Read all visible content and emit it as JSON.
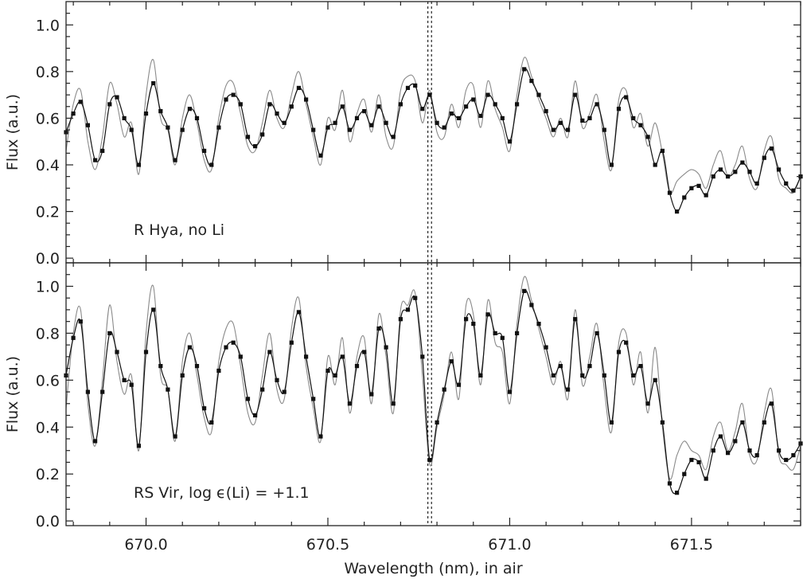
{
  "chart_data": {
    "type": "line",
    "x_axis": {
      "label": "Wavelength (nm), in air",
      "range": [
        669.78,
        671.8
      ],
      "ticks": [
        670.0,
        670.5,
        671.0,
        671.5
      ],
      "tick_labels": [
        "670.0",
        "670.5",
        "671.0",
        "671.5"
      ]
    },
    "marker_lines": [
      670.775,
      670.785
    ],
    "colors": {
      "observed": "#111111",
      "model": "#8a8a8a"
    },
    "panels": [
      {
        "annotation": "R Hya, no Li",
        "ylabel": "Flux (a.u.)",
        "ylim": [
          -0.02,
          1.1
        ],
        "yticks": [
          "0.0",
          "0.2",
          "0.4",
          "0.6",
          "0.8",
          "1.0"
        ],
        "series": [
          {
            "role": "observed",
            "x": [
              669.78,
              669.8,
              669.82,
              669.84,
              669.86,
              669.88,
              669.9,
              669.92,
              669.94,
              669.96,
              669.98,
              670.0,
              670.02,
              670.04,
              670.06,
              670.08,
              670.1,
              670.12,
              670.14,
              670.16,
              670.18,
              670.2,
              670.22,
              670.24,
              670.26,
              670.28,
              670.3,
              670.32,
              670.34,
              670.36,
              670.38,
              670.4,
              670.42,
              670.44,
              670.46,
              670.48,
              670.5,
              670.52,
              670.54,
              670.56,
              670.58,
              670.6,
              670.62,
              670.64,
              670.66,
              670.68,
              670.7,
              670.72,
              670.74,
              670.76,
              670.78,
              670.8,
              670.82,
              670.84,
              670.86,
              670.88,
              670.9,
              670.92,
              670.94,
              670.96,
              670.98,
              671.0,
              671.02,
              671.04,
              671.06,
              671.08,
              671.1,
              671.12,
              671.14,
              671.16,
              671.18,
              671.2,
              671.22,
              671.24,
              671.26,
              671.28,
              671.3,
              671.32,
              671.34,
              671.36,
              671.38,
              671.4,
              671.42,
              671.44,
              671.46,
              671.48,
              671.5,
              671.52,
              671.54,
              671.56,
              671.58,
              671.6,
              671.62,
              671.64,
              671.66,
              671.68,
              671.7,
              671.72,
              671.74,
              671.76,
              671.78,
              671.8
            ],
            "y": [
              0.54,
              0.62,
              0.67,
              0.57,
              0.42,
              0.46,
              0.66,
              0.69,
              0.6,
              0.55,
              0.4,
              0.62,
              0.75,
              0.63,
              0.56,
              0.42,
              0.55,
              0.64,
              0.6,
              0.46,
              0.4,
              0.56,
              0.68,
              0.7,
              0.66,
              0.52,
              0.48,
              0.53,
              0.66,
              0.62,
              0.58,
              0.65,
              0.73,
              0.68,
              0.55,
              0.44,
              0.56,
              0.58,
              0.65,
              0.55,
              0.6,
              0.63,
              0.57,
              0.65,
              0.58,
              0.52,
              0.66,
              0.73,
              0.74,
              0.64,
              0.7,
              0.58,
              0.56,
              0.62,
              0.6,
              0.65,
              0.68,
              0.61,
              0.7,
              0.66,
              0.6,
              0.5,
              0.66,
              0.81,
              0.76,
              0.7,
              0.63,
              0.55,
              0.58,
              0.55,
              0.7,
              0.59,
              0.6,
              0.66,
              0.55,
              0.4,
              0.64,
              0.69,
              0.6,
              0.57,
              0.52,
              0.4,
              0.46,
              0.28,
              0.2,
              0.26,
              0.3,
              0.31,
              0.27,
              0.35,
              0.38,
              0.35,
              0.37,
              0.41,
              0.37,
              0.32,
              0.43,
              0.47,
              0.38,
              0.32,
              0.29,
              0.35
            ]
          },
          {
            "role": "model",
            "x": [
              669.78,
              669.8,
              669.82,
              669.84,
              669.86,
              669.88,
              669.9,
              669.92,
              669.94,
              669.96,
              669.98,
              670.0,
              670.02,
              670.04,
              670.06,
              670.08,
              670.1,
              670.12,
              670.14,
              670.16,
              670.18,
              670.2,
              670.22,
              670.24,
              670.26,
              670.28,
              670.3,
              670.32,
              670.34,
              670.36,
              670.38,
              670.4,
              670.42,
              670.44,
              670.46,
              670.48,
              670.5,
              670.52,
              670.54,
              670.56,
              670.58,
              670.6,
              670.62,
              670.64,
              670.66,
              670.68,
              670.7,
              670.72,
              670.74,
              670.76,
              670.78,
              670.8,
              670.82,
              670.84,
              670.86,
              670.88,
              670.9,
              670.92,
              670.94,
              670.96,
              670.98,
              671.0,
              671.02,
              671.04,
              671.06,
              671.08,
              671.1,
              671.12,
              671.14,
              671.16,
              671.18,
              671.2,
              671.22,
              671.24,
              671.26,
              671.28,
              671.3,
              671.32,
              671.34,
              671.36,
              671.38,
              671.4,
              671.42,
              671.44,
              671.46,
              671.48,
              671.5,
              671.52,
              671.54,
              671.56,
              671.58,
              671.6,
              671.62,
              671.64,
              671.66,
              671.68,
              671.7,
              671.72,
              671.74,
              671.76,
              671.78,
              671.8
            ],
            "y": [
              0.46,
              0.66,
              0.72,
              0.5,
              0.38,
              0.52,
              0.75,
              0.66,
              0.52,
              0.58,
              0.36,
              0.7,
              0.85,
              0.6,
              0.55,
              0.4,
              0.6,
              0.7,
              0.58,
              0.42,
              0.38,
              0.6,
              0.74,
              0.75,
              0.62,
              0.48,
              0.46,
              0.58,
              0.72,
              0.6,
              0.56,
              0.7,
              0.8,
              0.66,
              0.52,
              0.4,
              0.6,
              0.55,
              0.72,
              0.5,
              0.62,
              0.68,
              0.54,
              0.7,
              0.52,
              0.48,
              0.72,
              0.78,
              0.76,
              0.58,
              0.72,
              0.54,
              0.52,
              0.66,
              0.56,
              0.72,
              0.74,
              0.56,
              0.76,
              0.64,
              0.56,
              0.46,
              0.7,
              0.86,
              0.78,
              0.68,
              0.6,
              0.52,
              0.6,
              0.52,
              0.76,
              0.56,
              0.62,
              0.7,
              0.5,
              0.38,
              0.68,
              0.72,
              0.56,
              0.62,
              0.48,
              0.58,
              0.45,
              0.28,
              0.33,
              0.36,
              0.38,
              0.36,
              0.3,
              0.4,
              0.46,
              0.35,
              0.4,
              0.48,
              0.34,
              0.3,
              0.46,
              0.52,
              0.34,
              0.3,
              0.28,
              0.35
            ]
          }
        ]
      },
      {
        "annotation": "RS Vir, log ϵ(Li) = +1.1",
        "ylabel": "Flux (a.u.)",
        "ylim": [
          -0.02,
          1.1
        ],
        "yticks": [
          "0.0",
          "0.2",
          "0.4",
          "0.6",
          "0.8",
          "1.0"
        ],
        "series": [
          {
            "role": "observed",
            "x": [
              669.78,
              669.8,
              669.82,
              669.84,
              669.86,
              669.88,
              669.9,
              669.92,
              669.94,
              669.96,
              669.98,
              670.0,
              670.02,
              670.04,
              670.06,
              670.08,
              670.1,
              670.12,
              670.14,
              670.16,
              670.18,
              670.2,
              670.22,
              670.24,
              670.26,
              670.28,
              670.3,
              670.32,
              670.34,
              670.36,
              670.38,
              670.4,
              670.42,
              670.44,
              670.46,
              670.48,
              670.5,
              670.52,
              670.54,
              670.56,
              670.58,
              670.6,
              670.62,
              670.64,
              670.66,
              670.68,
              670.7,
              670.72,
              670.74,
              670.76,
              670.78,
              670.8,
              670.82,
              670.84,
              670.86,
              670.88,
              670.9,
              670.92,
              670.94,
              670.96,
              670.98,
              671.0,
              671.02,
              671.04,
              671.06,
              671.08,
              671.1,
              671.12,
              671.14,
              671.16,
              671.18,
              671.2,
              671.22,
              671.24,
              671.26,
              671.28,
              671.3,
              671.32,
              671.34,
              671.36,
              671.38,
              671.4,
              671.42,
              671.44,
              671.46,
              671.48,
              671.5,
              671.52,
              671.54,
              671.56,
              671.58,
              671.6,
              671.62,
              671.64,
              671.66,
              671.68,
              671.7,
              671.72,
              671.74,
              671.76,
              671.78,
              671.8
            ],
            "y": [
              0.62,
              0.78,
              0.85,
              0.55,
              0.34,
              0.55,
              0.8,
              0.72,
              0.6,
              0.58,
              0.32,
              0.72,
              0.9,
              0.66,
              0.56,
              0.36,
              0.62,
              0.74,
              0.66,
              0.48,
              0.42,
              0.64,
              0.74,
              0.76,
              0.7,
              0.52,
              0.45,
              0.56,
              0.72,
              0.6,
              0.55,
              0.76,
              0.89,
              0.7,
              0.52,
              0.36,
              0.64,
              0.62,
              0.7,
              0.5,
              0.66,
              0.72,
              0.54,
              0.82,
              0.74,
              0.5,
              0.86,
              0.9,
              0.95,
              0.7,
              0.26,
              0.42,
              0.56,
              0.68,
              0.58,
              0.86,
              0.84,
              0.62,
              0.88,
              0.8,
              0.78,
              0.55,
              0.8,
              0.98,
              0.92,
              0.84,
              0.74,
              0.62,
              0.66,
              0.56,
              0.86,
              0.62,
              0.66,
              0.8,
              0.62,
              0.42,
              0.72,
              0.76,
              0.62,
              0.66,
              0.5,
              0.6,
              0.42,
              0.16,
              0.12,
              0.2,
              0.26,
              0.25,
              0.18,
              0.3,
              0.36,
              0.29,
              0.34,
              0.42,
              0.3,
              0.28,
              0.42,
              0.5,
              0.3,
              0.26,
              0.28,
              0.33
            ]
          },
          {
            "role": "model",
            "x": [
              669.78,
              669.8,
              669.82,
              669.84,
              669.86,
              669.88,
              669.9,
              669.92,
              669.94,
              669.96,
              669.98,
              670.0,
              670.02,
              670.04,
              670.06,
              670.08,
              670.1,
              670.12,
              670.14,
              670.16,
              670.18,
              670.2,
              670.22,
              670.24,
              670.26,
              670.28,
              670.3,
              670.32,
              670.34,
              670.36,
              670.38,
              670.4,
              670.42,
              670.44,
              670.46,
              670.48,
              670.5,
              670.52,
              670.54,
              670.56,
              670.58,
              670.6,
              670.62,
              670.64,
              670.66,
              670.68,
              670.7,
              670.72,
              670.74,
              670.76,
              670.78,
              670.8,
              670.82,
              670.84,
              670.86,
              670.88,
              670.9,
              670.92,
              670.94,
              670.96,
              670.98,
              671.0,
              671.02,
              671.04,
              671.06,
              671.08,
              671.1,
              671.12,
              671.14,
              671.16,
              671.18,
              671.2,
              671.22,
              671.24,
              671.26,
              671.28,
              671.3,
              671.32,
              671.34,
              671.36,
              671.38,
              671.4,
              671.42,
              671.44,
              671.46,
              671.48,
              671.5,
              671.52,
              671.54,
              671.56,
              671.58,
              671.6,
              671.62,
              671.64,
              671.66,
              671.68,
              671.7,
              671.72,
              671.74,
              671.76,
              671.78,
              671.8
            ],
            "y": [
              0.48,
              0.8,
              0.9,
              0.5,
              0.32,
              0.6,
              0.92,
              0.68,
              0.54,
              0.62,
              0.3,
              0.8,
              1.0,
              0.62,
              0.56,
              0.34,
              0.68,
              0.8,
              0.62,
              0.44,
              0.38,
              0.68,
              0.82,
              0.84,
              0.66,
              0.46,
              0.42,
              0.62,
              0.8,
              0.56,
              0.52,
              0.82,
              0.95,
              0.66,
              0.48,
              0.34,
              0.7,
              0.58,
              0.78,
              0.46,
              0.7,
              0.78,
              0.5,
              0.88,
              0.7,
              0.46,
              0.9,
              0.92,
              0.97,
              0.62,
              0.24,
              0.4,
              0.54,
              0.72,
              0.52,
              0.92,
              0.88,
              0.58,
              0.94,
              0.76,
              0.72,
              0.5,
              0.84,
              1.04,
              0.94,
              0.82,
              0.7,
              0.58,
              0.68,
              0.52,
              0.9,
              0.58,
              0.7,
              0.84,
              0.56,
              0.38,
              0.76,
              0.8,
              0.58,
              0.72,
              0.46,
              0.74,
              0.4,
              0.18,
              0.28,
              0.34,
              0.3,
              0.28,
              0.22,
              0.36,
              0.42,
              0.3,
              0.38,
              0.5,
              0.28,
              0.26,
              0.46,
              0.56,
              0.28,
              0.24,
              0.22,
              0.32
            ]
          }
        ]
      }
    ]
  }
}
